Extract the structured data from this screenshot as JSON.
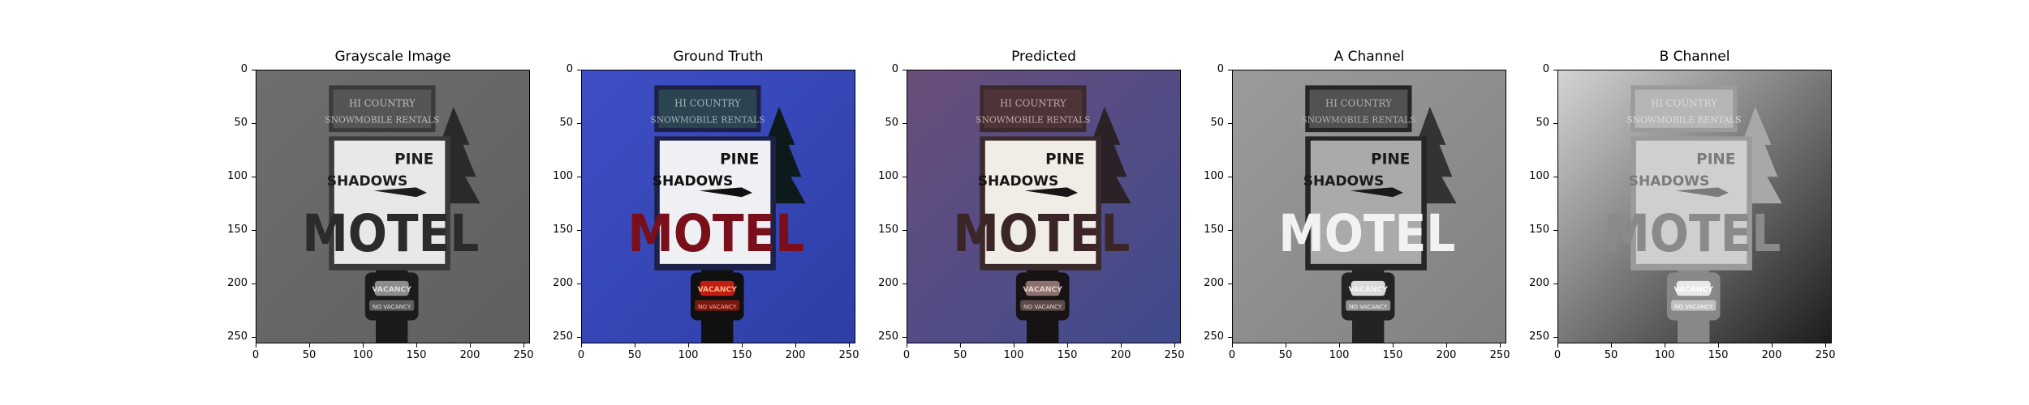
{
  "figure": {
    "panels": [
      {
        "title": "Grayscale Image",
        "mode": "gray"
      },
      {
        "title": "Ground Truth",
        "mode": "truth"
      },
      {
        "title": "Predicted",
        "mode": "pred"
      },
      {
        "title": "A Channel",
        "mode": "achan"
      },
      {
        "title": "B Channel",
        "mode": "bchan"
      }
    ],
    "x_ticks": [
      "0",
      "50",
      "100",
      "150",
      "200",
      "250"
    ],
    "y_ticks": [
      "0",
      "50",
      "100",
      "150",
      "200",
      "250"
    ],
    "x_tick_values": [
      0,
      50,
      100,
      150,
      200,
      250
    ],
    "y_tick_values": [
      0,
      50,
      100,
      150,
      200,
      250
    ],
    "axis_range": [
      0,
      256
    ],
    "sign": {
      "line1": "HI COUNTRY",
      "line2": "SNOWMOBILE RENTALS",
      "line3": "PINE",
      "line4": "SHADOWS",
      "line5": "MOTEL",
      "line6": "VACANCY",
      "line7": "NO VACANCY"
    }
  }
}
